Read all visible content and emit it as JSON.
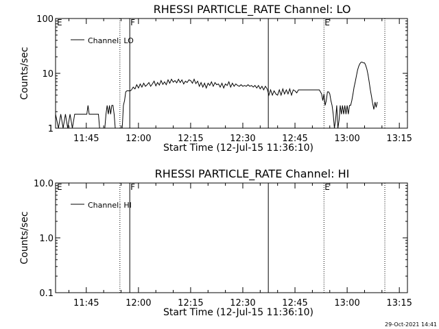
{
  "chart_data": [
    {
      "type": "line",
      "title": "RHESSI PARTICLE_RATE Channel: LO",
      "xlabel": "Start Time (12-Jul-15 11:36:10)",
      "ylabel": "Counts/sec",
      "yscale": "log",
      "ylim": [
        1,
        100
      ],
      "yticks": [
        {
          "v": 1,
          "label": "1"
        },
        {
          "v": 10,
          "label": "10"
        },
        {
          "v": 100,
          "label": "100"
        }
      ],
      "xlim": [
        "11:36:10",
        "13:17:20"
      ],
      "xticks": [
        "11:45",
        "12:00",
        "12:15",
        "12:30",
        "12:45",
        "13:00",
        "13:15"
      ],
      "legend": "top-left",
      "series": [
        {
          "name": "Channel: LO",
          "points": [
            [
              "11:36:10",
              1.8
            ],
            [
              "11:37:00",
              1.0
            ],
            [
              "11:37:40",
              1.8
            ],
            [
              "11:38:20",
              1.0
            ],
            [
              "11:39:00",
              1.8
            ],
            [
              "11:39:40",
              1.0
            ],
            [
              "11:40:20",
              1.8
            ],
            [
              "11:41:00",
              1.0
            ],
            [
              "11:41:40",
              1.8
            ],
            [
              "11:42:20",
              1.8
            ],
            [
              "11:43:00",
              1.8
            ],
            [
              "11:43:40",
              1.8
            ],
            [
              "11:44:20",
              1.8
            ],
            [
              "11:44:40",
              1.8
            ],
            [
              "11:45:10",
              1.8
            ],
            [
              "11:45:30",
              2.6
            ],
            [
              "11:45:50",
              1.8
            ],
            [
              "11:46:30",
              1.8
            ],
            [
              "11:47:10",
              1.8
            ],
            [
              "11:47:50",
              1.8
            ],
            [
              "11:48:30",
              1.8
            ],
            [
              "11:48:50",
              1.0
            ],
            [
              "11:49:20",
              1.0
            ],
            [
              "11:49:50",
              1.0
            ],
            [
              "11:50:20",
              1.0
            ],
            [
              "11:50:40",
              1.8
            ],
            [
              "11:51:00",
              2.6
            ],
            [
              "11:51:20",
              1.8
            ],
            [
              "11:51:40",
              2.6
            ],
            [
              "11:52:00",
              1.8
            ],
            [
              "11:52:20",
              2.6
            ],
            [
              "11:52:40",
              2.6
            ],
            [
              "11:53:00",
              1.8
            ],
            [
              "11:53:20",
              1.0
            ],
            [
              "11:53:40",
              1.0
            ],
            [
              "11:54:00",
              1.0
            ],
            [
              "11:54:30",
              1.0
            ],
            [
              "11:55:00",
              1.0
            ],
            [
              "11:55:20",
              1.0
            ],
            [
              "11:55:40",
              2.6
            ],
            [
              "11:56:00",
              3.2
            ],
            [
              "11:56:20",
              4.6
            ],
            [
              "11:56:40",
              4.8
            ],
            [
              "11:57:00",
              4.8
            ],
            [
              "11:57:40",
              4.8
            ],
            [
              "11:58:00",
              5.0
            ],
            [
              "11:58:30",
              5.6
            ],
            [
              "11:59:00",
              5.2
            ],
            [
              "11:59:30",
              6.2
            ],
            [
              "12:00:00",
              5.4
            ],
            [
              "12:00:30",
              6.4
            ],
            [
              "12:01:00",
              5.6
            ],
            [
              "12:01:30",
              6.6
            ],
            [
              "12:02:00",
              5.8
            ],
            [
              "12:02:30",
              6.2
            ],
            [
              "12:03:00",
              6.8
            ],
            [
              "12:03:30",
              5.8
            ],
            [
              "12:04:00",
              6.4
            ],
            [
              "12:04:30",
              7.2
            ],
            [
              "12:05:00",
              5.9
            ],
            [
              "12:05:30",
              6.8
            ],
            [
              "12:06:00",
              6.1
            ],
            [
              "12:06:30",
              7.4
            ],
            [
              "12:07:00",
              6.3
            ],
            [
              "12:07:30",
              7.0
            ],
            [
              "12:08:00",
              6.2
            ],
            [
              "12:08:30",
              7.6
            ],
            [
              "12:09:00",
              6.6
            ],
            [
              "12:09:30",
              7.8
            ],
            [
              "12:10:00",
              6.9
            ],
            [
              "12:10:30",
              7.4
            ],
            [
              "12:11:00",
              6.7
            ],
            [
              "12:11:30",
              7.8
            ],
            [
              "12:12:00",
              6.8
            ],
            [
              "12:12:30",
              7.6
            ],
            [
              "12:13:00",
              6.4
            ],
            [
              "12:13:30",
              7.2
            ],
            [
              "12:14:00",
              6.8
            ],
            [
              "12:14:30",
              7.6
            ],
            [
              "12:15:00",
              7.4
            ],
            [
              "12:15:30",
              6.6
            ],
            [
              "12:16:00",
              7.8
            ],
            [
              "12:16:30",
              6.5
            ],
            [
              "12:17:00",
              7.2
            ],
            [
              "12:17:30",
              5.8
            ],
            [
              "12:18:00",
              6.8
            ],
            [
              "12:18:30",
              5.6
            ],
            [
              "12:19:00",
              6.6
            ],
            [
              "12:19:30",
              5.4
            ],
            [
              "12:20:00",
              6.6
            ],
            [
              "12:20:30",
              6.0
            ],
            [
              "12:21:00",
              7.0
            ],
            [
              "12:21:30",
              5.8
            ],
            [
              "12:22:00",
              6.8
            ],
            [
              "12:22:30",
              6.2
            ],
            [
              "12:23:00",
              6.4
            ],
            [
              "12:23:30",
              5.6
            ],
            [
              "12:24:00",
              6.6
            ],
            [
              "12:24:30",
              5.4
            ],
            [
              "12:25:00",
              6.4
            ],
            [
              "12:25:30",
              6.0
            ],
            [
              "12:26:00",
              7.0
            ],
            [
              "12:26:30",
              5.6
            ],
            [
              "12:27:00",
              6.6
            ],
            [
              "12:27:30",
              5.8
            ],
            [
              "12:28:00",
              6.4
            ],
            [
              "12:28:30",
              6.0
            ],
            [
              "12:29:00",
              5.8
            ],
            [
              "12:29:30",
              6.2
            ],
            [
              "12:30:00",
              5.8
            ],
            [
              "12:30:30",
              6.0
            ],
            [
              "12:31:00",
              5.8
            ],
            [
              "12:31:30",
              6.2
            ],
            [
              "12:32:00",
              5.8
            ],
            [
              "12:32:30",
              6.0
            ],
            [
              "12:33:00",
              5.6
            ],
            [
              "12:33:30",
              6.0
            ],
            [
              "12:34:00",
              5.4
            ],
            [
              "12:34:30",
              6.0
            ],
            [
              "12:35:00",
              5.2
            ],
            [
              "12:35:30",
              5.8
            ],
            [
              "12:36:00",
              5.0
            ],
            [
              "12:36:30",
              5.8
            ],
            [
              "12:37:00",
              5.2
            ],
            [
              "12:37:30",
              4.0
            ],
            [
              "12:38:00",
              5.0
            ],
            [
              "12:38:30",
              4.0
            ],
            [
              "12:39:00",
              4.8
            ],
            [
              "12:39:30",
              4.2
            ],
            [
              "12:40:00",
              4.0
            ],
            [
              "12:40:30",
              5.0
            ],
            [
              "12:41:00",
              4.0
            ],
            [
              "12:41:30",
              5.2
            ],
            [
              "12:42:00",
              4.2
            ],
            [
              "12:42:30",
              5.0
            ],
            [
              "12:43:00",
              4.2
            ],
            [
              "12:43:30",
              5.2
            ],
            [
              "12:44:00",
              4.0
            ],
            [
              "12:44:30",
              5.0
            ],
            [
              "12:45:00",
              4.8
            ],
            [
              "12:45:30",
              4.4
            ],
            [
              "12:46:00",
              5.0
            ],
            [
              "12:47:00",
              5.0
            ],
            [
              "12:48:00",
              5.0
            ],
            [
              "12:49:00",
              5.0
            ],
            [
              "12:50:00",
              5.0
            ],
            [
              "12:51:00",
              5.0
            ],
            [
              "12:52:00",
              5.0
            ],
            [
              "12:52:40",
              4.2
            ],
            [
              "12:53:00",
              3.2
            ],
            [
              "12:53:20",
              4.2
            ],
            [
              "12:53:40",
              2.6
            ],
            [
              "12:54:00",
              3.2
            ],
            [
              "12:54:20",
              4.6
            ],
            [
              "12:54:40",
              4.6
            ],
            [
              "12:55:00",
              4.2
            ],
            [
              "12:55:20",
              3.2
            ],
            [
              "12:55:40",
              2.6
            ],
            [
              "12:56:00",
              1.8
            ],
            [
              "12:56:20",
              1.0
            ],
            [
              "12:56:40",
              1.4
            ],
            [
              "12:57:00",
              2.6
            ],
            [
              "12:57:20",
              1.0
            ],
            [
              "12:57:40",
              1.4
            ],
            [
              "12:58:00",
              2.6
            ],
            [
              "12:58:20",
              1.8
            ],
            [
              "12:58:40",
              2.6
            ],
            [
              "12:59:00",
              1.8
            ],
            [
              "12:59:20",
              2.6
            ],
            [
              "12:59:40",
              1.8
            ],
            [
              "13:00:00",
              2.6
            ],
            [
              "13:00:20",
              1.8
            ],
            [
              "13:00:40",
              2.6
            ],
            [
              "13:01:00",
              2.6
            ],
            [
              "13:01:20",
              3.2
            ],
            [
              "13:01:40",
              4.2
            ],
            [
              "13:02:00",
              5.6
            ],
            [
              "13:02:20",
              7.0
            ],
            [
              "13:02:40",
              9.0
            ],
            [
              "13:03:00",
              11.5
            ],
            [
              "13:03:20",
              13.5
            ],
            [
              "13:03:40",
              15.0
            ],
            [
              "13:04:00",
              16.0
            ],
            [
              "13:04:20",
              16.0
            ],
            [
              "13:04:40",
              15.5
            ],
            [
              "13:05:00",
              15.5
            ],
            [
              "13:05:20",
              14.0
            ],
            [
              "13:05:40",
              12.0
            ],
            [
              "13:06:00",
              9.5
            ],
            [
              "13:06:20",
              7.0
            ],
            [
              "13:06:40",
              5.0
            ],
            [
              "13:07:00",
              3.8
            ],
            [
              "13:07:20",
              2.8
            ],
            [
              "13:07:40",
              2.2
            ],
            [
              "13:08:00",
              3.0
            ],
            [
              "13:08:20",
              2.4
            ],
            [
              "13:08:40",
              3.0
            ]
          ]
        }
      ],
      "vlines": [
        {
          "t": "11:54:40",
          "style": "dotted",
          "label": ""
        },
        {
          "t": "11:57:30",
          "style": "solid",
          "label": "F"
        },
        {
          "t": "12:37:20",
          "style": "solid",
          "label": ""
        },
        {
          "t": "12:53:20",
          "style": "dotted",
          "label": "E"
        },
        {
          "t": "13:10:50",
          "style": "dotted",
          "label": ""
        }
      ],
      "corner_label": "E"
    },
    {
      "type": "line",
      "title": "RHESSI PARTICLE_RATE Channel: HI",
      "xlabel": "Start Time (12-Jul-15 11:36:10)",
      "ylabel": "Counts/sec",
      "yscale": "log",
      "ylim": [
        0.1,
        10
      ],
      "yticks": [
        {
          "v": 0.1,
          "label": "0.1"
        },
        {
          "v": 1,
          "label": "1.0"
        },
        {
          "v": 10,
          "label": "10.0"
        }
      ],
      "xlim": [
        "11:36:10",
        "13:17:20"
      ],
      "xticks": [
        "11:45",
        "12:00",
        "12:15",
        "12:30",
        "12:45",
        "13:00",
        "13:15"
      ],
      "legend": "top-left",
      "series": [
        {
          "name": "Channel: HI",
          "points": []
        }
      ],
      "vlines": [
        {
          "t": "11:54:40",
          "style": "dotted",
          "label": ""
        },
        {
          "t": "11:57:30",
          "style": "solid",
          "label": "F"
        },
        {
          "t": "12:37:20",
          "style": "solid",
          "label": ""
        },
        {
          "t": "12:53:20",
          "style": "dotted",
          "label": "E"
        },
        {
          "t": "13:10:50",
          "style": "dotted",
          "label": ""
        }
      ],
      "corner_label": "E"
    }
  ],
  "footer": {
    "timestamp": "29-Oct-2021 14:41"
  }
}
